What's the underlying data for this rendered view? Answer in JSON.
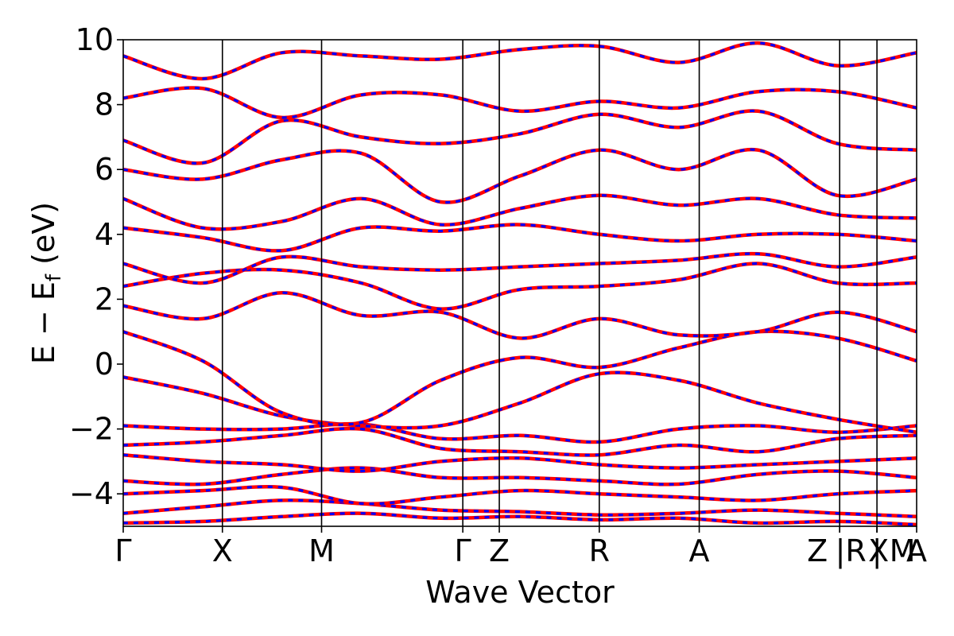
{
  "chart_data": {
    "type": "line",
    "title": "",
    "xlabel": "Wave Vector",
    "ylabel_parts": {
      "main": "E − E",
      "sub": "f",
      "unit": " (eV)"
    },
    "ylim": [
      -5,
      10
    ],
    "yticks": [
      -4,
      -2,
      0,
      2,
      4,
      6,
      8,
      10
    ],
    "ytick_labels": [
      "−4",
      "−2",
      "0",
      "2",
      "4",
      "6",
      "8",
      "10"
    ],
    "high_symmetry_points": [
      {
        "label": "Γ",
        "pos": 0.0
      },
      {
        "label": "X",
        "pos": 0.125
      },
      {
        "label": "M",
        "pos": 0.25
      },
      {
        "label": "Γ",
        "pos": 0.428
      },
      {
        "label": "Z",
        "pos": 0.474
      },
      {
        "label": "R",
        "pos": 0.6
      },
      {
        "label": "A",
        "pos": 0.726
      },
      {
        "label": "Z",
        "pos": 0.903
      },
      {
        "label": "|R",
        "pos": 0.903
      },
      {
        "label": "X",
        "pos": 0.95
      },
      {
        "label": "|",
        "pos": 0.95
      },
      {
        "label": "M",
        "pos": 0.95
      },
      {
        "label": "A",
        "pos": 1.0
      }
    ],
    "series_styles": [
      {
        "style": "solid",
        "color": "#ff0000"
      },
      {
        "style": "dashed",
        "color": "#0000ff"
      }
    ],
    "grid": false,
    "bands": [
      [
        -4.9,
        -4.85,
        -4.7,
        -4.6,
        -4.75,
        -4.7,
        -4.8,
        -4.75,
        -4.9,
        -4.85,
        -4.95
      ],
      [
        -4.6,
        -4.4,
        -4.2,
        -4.3,
        -4.5,
        -4.55,
        -4.65,
        -4.6,
        -4.5,
        -4.6,
        -4.7
      ],
      [
        -4.0,
        -3.9,
        -3.8,
        -4.3,
        -4.1,
        -3.9,
        -4.0,
        -4.1,
        -4.2,
        -4.0,
        -3.9
      ],
      [
        -3.6,
        -3.7,
        -3.4,
        -3.2,
        -3.5,
        -3.5,
        -3.6,
        -3.7,
        -3.4,
        -3.3,
        -3.5
      ],
      [
        -2.8,
        -3.0,
        -3.1,
        -3.3,
        -3.0,
        -2.9,
        -3.1,
        -3.2,
        -3.1,
        -3.0,
        -2.9
      ],
      [
        -2.5,
        -2.4,
        -2.2,
        -2.0,
        -2.6,
        -2.7,
        -2.8,
        -2.5,
        -2.7,
        -2.3,
        -2.2
      ],
      [
        -1.9,
        -2.0,
        -2.0,
        -1.85,
        -2.3,
        -2.2,
        -2.4,
        -2.0,
        -1.9,
        -2.1,
        -1.9
      ],
      [
        -0.4,
        -0.9,
        -1.6,
        -1.9,
        -1.9,
        -1.2,
        -0.3,
        -0.5,
        -1.2,
        -1.7,
        -2.1
      ],
      [
        1.0,
        0.1,
        -1.5,
        -1.8,
        -0.5,
        0.2,
        -0.1,
        0.5,
        1.0,
        0.8,
        0.1
      ],
      [
        1.8,
        1.4,
        2.2,
        1.5,
        1.6,
        0.8,
        1.4,
        0.9,
        1.0,
        1.6,
        1.0
      ],
      [
        2.4,
        2.8,
        2.9,
        2.5,
        1.7,
        2.3,
        2.4,
        2.6,
        3.1,
        2.5,
        2.5
      ],
      [
        3.1,
        2.5,
        3.3,
        3.0,
        2.9,
        3.0,
        3.1,
        3.2,
        3.4,
        3.0,
        3.3
      ],
      [
        4.2,
        3.9,
        3.5,
        4.2,
        4.1,
        4.3,
        4.0,
        3.8,
        4.0,
        4.0,
        3.8
      ],
      [
        5.1,
        4.2,
        4.4,
        5.1,
        4.3,
        4.8,
        5.2,
        4.9,
        5.1,
        4.6,
        4.5
      ],
      [
        6.0,
        5.7,
        6.3,
        6.5,
        5.0,
        5.8,
        6.6,
        6.0,
        6.6,
        5.2,
        5.7
      ],
      [
        6.9,
        6.2,
        7.5,
        7.0,
        6.8,
        7.1,
        7.7,
        7.3,
        7.8,
        6.8,
        6.6
      ],
      [
        8.2,
        8.5,
        7.6,
        8.3,
        8.3,
        7.8,
        8.1,
        7.9,
        8.4,
        8.4,
        7.9
      ],
      [
        9.5,
        8.8,
        9.6,
        9.5,
        9.4,
        9.7,
        9.8,
        9.3,
        9.9,
        9.2,
        9.6
      ]
    ]
  }
}
